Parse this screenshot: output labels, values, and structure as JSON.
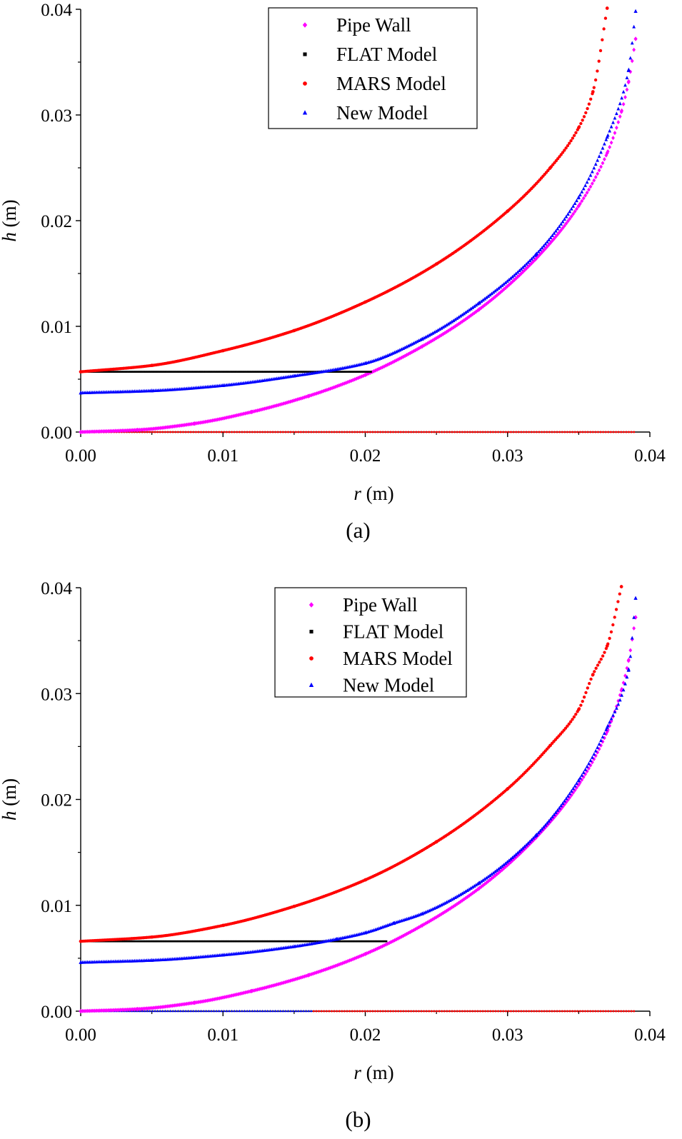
{
  "chart_data": [
    {
      "type": "scatter",
      "panel_label": "(a)",
      "xlabel_var": "r",
      "xlabel_unit": " (m)",
      "ylabel_var": "h",
      "ylabel_unit": " (m)",
      "xlim": [
        0,
        0.04
      ],
      "ylim": [
        0,
        0.04
      ],
      "xticks": [
        "0.00",
        "0.01",
        "0.02",
        "0.03",
        "0.04"
      ],
      "yticks": [
        "0.00",
        "0.01",
        "0.02",
        "0.03",
        "0.04"
      ],
      "legend_position": "top-center",
      "series": [
        {
          "name": "Pipe Wall",
          "marker": "diamond",
          "color": "#ff00ff",
          "x": [
            0,
            0.004,
            0.008,
            0.012,
            0.016,
            0.02,
            0.024,
            0.028,
            0.032,
            0.035,
            0.037,
            0.038,
            0.0385,
            0.039
          ],
          "y": [
            0,
            0.0002,
            0.0008,
            0.0019,
            0.0034,
            0.0054,
            0.0081,
            0.0116,
            0.0164,
            0.0214,
            0.0264,
            0.0303,
            0.0331,
            0.0372
          ]
        },
        {
          "name": "FLAT Model",
          "marker": "square",
          "color": "#000000",
          "x": [
            0,
            0.0205
          ],
          "y": [
            0.0057,
            0.0057
          ]
        },
        {
          "name": "MARS Model",
          "marker": "circle",
          "color": "#ff0000",
          "x": [
            0,
            0.005,
            0.01,
            0.015,
            0.02,
            0.025,
            0.03,
            0.033,
            0.035,
            0.036,
            0.037
          ],
          "y": [
            0.0057,
            0.0063,
            0.0077,
            0.0096,
            0.0123,
            0.0159,
            0.0209,
            0.025,
            0.0288,
            0.0322,
            0.0401
          ]
        },
        {
          "name": "New Model",
          "marker": "triangle",
          "color": "#0000ff",
          "x": [
            0,
            0.005,
            0.01,
            0.015,
            0.02,
            0.024,
            0.028,
            0.032,
            0.035,
            0.037,
            0.0385,
            0.039
          ],
          "y": [
            0.0037,
            0.0039,
            0.0044,
            0.0053,
            0.0065,
            0.0088,
            0.0122,
            0.0168,
            0.0222,
            0.0279,
            0.0342,
            0.0398
          ]
        }
      ]
    },
    {
      "type": "scatter",
      "panel_label": "(b)",
      "xlabel_var": "r",
      "xlabel_unit": " (m)",
      "ylabel_var": "h",
      "ylabel_unit": " (m)",
      "xlim": [
        0,
        0.04
      ],
      "ylim": [
        0,
        0.04
      ],
      "xticks": [
        "0.00",
        "0.01",
        "0.02",
        "0.03",
        "0.04"
      ],
      "yticks": [
        "0.00",
        "0.01",
        "0.02",
        "0.03",
        "0.04"
      ],
      "legend_position": "top-center",
      "series": [
        {
          "name": "Pipe Wall",
          "marker": "diamond",
          "color": "#ff00ff",
          "x": [
            0,
            0.004,
            0.008,
            0.012,
            0.016,
            0.02,
            0.024,
            0.028,
            0.032,
            0.035,
            0.037,
            0.038,
            0.0385,
            0.039
          ],
          "y": [
            0,
            0.0002,
            0.0008,
            0.0019,
            0.0034,
            0.0054,
            0.0081,
            0.0116,
            0.0164,
            0.0214,
            0.0264,
            0.0303,
            0.0331,
            0.0372
          ]
        },
        {
          "name": "FLAT Model",
          "marker": "square",
          "color": "#000000",
          "x": [
            0,
            0.0215
          ],
          "y": [
            0.0066,
            0.0066
          ]
        },
        {
          "name": "MARS Model",
          "marker": "circle",
          "color": "#ff0000",
          "x": [
            0,
            0.005,
            0.01,
            0.015,
            0.02,
            0.025,
            0.03,
            0.033,
            0.035,
            0.036,
            0.037,
            0.038
          ],
          "y": [
            0.0066,
            0.007,
            0.0081,
            0.0099,
            0.0124,
            0.016,
            0.021,
            0.0251,
            0.0285,
            0.0318,
            0.0345,
            0.0401
          ]
        },
        {
          "name": "New Model",
          "marker": "triangle",
          "color": "#0000ff",
          "x": [
            0,
            0.005,
            0.01,
            0.015,
            0.018,
            0.02,
            0.022,
            0.024,
            0.028,
            0.032,
            0.035,
            0.037,
            0.0385,
            0.039
          ],
          "y": [
            0.0046,
            0.0048,
            0.0053,
            0.0061,
            0.0068,
            0.0074,
            0.0083,
            0.0092,
            0.0121,
            0.0166,
            0.0218,
            0.0268,
            0.0322,
            0.039
          ]
        }
      ]
    }
  ]
}
